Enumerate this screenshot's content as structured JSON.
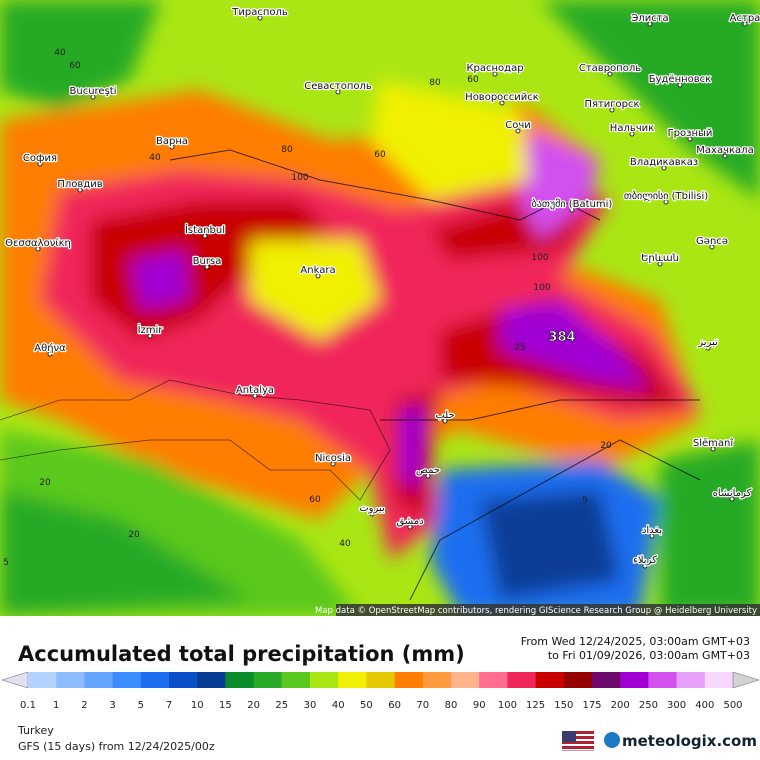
{
  "title": "Accumulated total precipitation (mm)",
  "period": [
    "From Wed 12/24/2025, 03:00am GMT+03",
    "to Fri 01/09/2026, 03:00am GMT+03"
  ],
  "region": "Turkey",
  "model": "GFS (15 days) from 12/24/2025/00z",
  "brand": "meteologix.com",
  "attribution": "Map data © OpenStreetMap contributors, rendering GIScience Research Group @ Heidelberg University",
  "max_label": "384",
  "cities": [
    "Тирасполь",
    "Bucureşti",
    "Краснодар",
    "Ставрополь",
    "Элиста",
    "Будённовск",
    "Севастополь",
    "Новороссийск",
    "Пятигорск",
    "Сочи",
    "Нальчик",
    "Грозный",
    "Махачкала",
    "Варна",
    "София",
    "Пловдив",
    "Владикавказ",
    "ბათუმი (Batumi)",
    "თბილისი (Tbilisi)",
    "İstanbul",
    "Gəncə",
    "Θεσσαλονίκη",
    "Bursa",
    "Ankara",
    "Երևան",
    "İzmir",
    "Αθήνα",
    "Antalya",
    "Nicosia",
    "حلب",
    "Slēmanî",
    "حمص",
    "بيروت",
    "دمشق",
    "بغداد",
    "كربلاء",
    "كرمانشاه",
    "تبریز",
    "Астра"
  ],
  "contour_labels": [
    "40",
    "60",
    "80",
    "100",
    "80",
    "60",
    "100",
    "40",
    "20",
    "60",
    "20",
    "5",
    "40",
    "60",
    "25",
    "100",
    "20",
    "5"
  ],
  "legend": {
    "labels": [
      0.1,
      1,
      2,
      3,
      5,
      7,
      10,
      15,
      20,
      25,
      30,
      40,
      50,
      60,
      70,
      80,
      90,
      100,
      125,
      150,
      175,
      200,
      250,
      300,
      400,
      500
    ],
    "colors": [
      "#b4d2ff",
      "#8cbcff",
      "#64a5ff",
      "#3c8cff",
      "#1e6ef0",
      "#0a50c8",
      "#0a3c96",
      "#0a8c28",
      "#28aa28",
      "#5ac81e",
      "#aae614",
      "#f0f000",
      "#e6c800",
      "#ff7d00",
      "#ff9b3c",
      "#ffb48c",
      "#ff6e8c",
      "#f0285a",
      "#c80000",
      "#960000",
      "#6e0a6e",
      "#a000d2",
      "#d250f0",
      "#e6a0fa",
      "#f5d7ff",
      "#d2d2d2"
    ]
  }
}
